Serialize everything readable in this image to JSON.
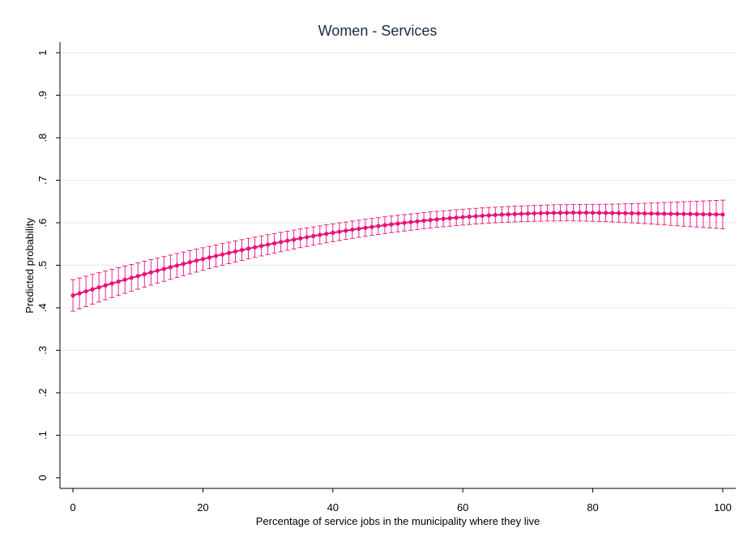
{
  "chart_data": {
    "type": "line",
    "title": "Women - Services",
    "xlabel": "Percentage of service jobs in the municipality where they live",
    "ylabel": "Predicted probability",
    "xlim": [
      -2,
      102
    ],
    "ylim": [
      -0.025,
      1.025
    ],
    "xticks": [
      0,
      20,
      40,
      60,
      80,
      100
    ],
    "xtick_labels": [
      "0",
      "20",
      "40",
      "60",
      "80",
      "100"
    ],
    "yticks": [
      0,
      0.1,
      0.2,
      0.3,
      0.4,
      0.5,
      0.6,
      0.7,
      0.8,
      0.9,
      1
    ],
    "ytick_labels": [
      "0",
      ".1",
      ".2",
      ".3",
      ".4",
      ".5",
      ".6",
      ".7",
      ".8",
      ".9",
      "1"
    ],
    "grid": "horizontal",
    "colors": {
      "series": "#e8117a",
      "ci": "#e8117a",
      "grid": "#e6ecef",
      "axis": "#000000",
      "title": "#1a2a44"
    },
    "series": [
      {
        "x": [
          0,
          1,
          2,
          3,
          4,
          5,
          6,
          7,
          8,
          9,
          10,
          11,
          12,
          13,
          14,
          15,
          16,
          17,
          18,
          19,
          20,
          21,
          22,
          23,
          24,
          25,
          26,
          27,
          28,
          29,
          30,
          31,
          32,
          33,
          34,
          35,
          36,
          37,
          38,
          39,
          40,
          41,
          42,
          43,
          44,
          45,
          46,
          47,
          48,
          49,
          50,
          51,
          52,
          53,
          54,
          55,
          56,
          57,
          58,
          59,
          60,
          61,
          62,
          63,
          64,
          65,
          66,
          67,
          68,
          69,
          70,
          71,
          72,
          73,
          74,
          75,
          76,
          77,
          78,
          79,
          80,
          81,
          82,
          83,
          84,
          85,
          86,
          87,
          88,
          89,
          90,
          91,
          92,
          93,
          94,
          95,
          96,
          97,
          98,
          99,
          100
        ],
        "y": [
          0.429,
          0.4338,
          0.4386,
          0.4433,
          0.448,
          0.4526,
          0.4571,
          0.4616,
          0.466,
          0.4704,
          0.4747,
          0.479,
          0.4832,
          0.4873,
          0.4914,
          0.4954,
          0.4994,
          0.5033,
          0.5071,
          0.5109,
          0.5146,
          0.5183,
          0.5219,
          0.5255,
          0.529,
          0.5324,
          0.5358,
          0.5391,
          0.5423,
          0.5455,
          0.5486,
          0.5517,
          0.5547,
          0.5577,
          0.5605,
          0.5634,
          0.5661,
          0.5688,
          0.5714,
          0.574,
          0.5765,
          0.579,
          0.5813,
          0.5837,
          0.5859,
          0.5881,
          0.5902,
          0.5923,
          0.5943,
          0.5962,
          0.5981,
          0.5999,
          0.6016,
          0.6033,
          0.6049,
          0.6065,
          0.6079,
          0.6093,
          0.6107,
          0.612,
          0.6132,
          0.6143,
          0.6154,
          0.6164,
          0.6174,
          0.6182,
          0.6191,
          0.6198,
          0.6205,
          0.6211,
          0.6216,
          0.6221,
          0.6225,
          0.6229,
          0.6232,
          0.6234,
          0.6235,
          0.6236,
          0.6236,
          0.6236,
          0.6235,
          0.6233,
          0.6231,
          0.6229,
          0.6227,
          0.6225,
          0.6223,
          0.6221,
          0.6219,
          0.6217,
          0.6215,
          0.6213,
          0.6211,
          0.6209,
          0.6207,
          0.6205,
          0.6203,
          0.6201,
          0.6199,
          0.6197,
          0.6195
        ],
        "ci_lower": [
          0.392,
          0.3975,
          0.403,
          0.4083,
          0.4136,
          0.4188,
          0.4239,
          0.429,
          0.434,
          0.4389,
          0.4437,
          0.4485,
          0.4532,
          0.4578,
          0.4623,
          0.4668,
          0.4712,
          0.4755,
          0.4798,
          0.4839,
          0.488,
          0.4921,
          0.4961,
          0.5,
          0.5038,
          0.5076,
          0.5113,
          0.5149,
          0.5184,
          0.5219,
          0.5253,
          0.5287,
          0.5319,
          0.5352,
          0.5383,
          0.5414,
          0.5443,
          0.5473,
          0.5501,
          0.5529,
          0.5556,
          0.5582,
          0.5608,
          0.5633,
          0.5657,
          0.568,
          0.5703,
          0.5725,
          0.5746,
          0.5767,
          0.5787,
          0.5806,
          0.5824,
          0.5842,
          0.5859,
          0.5875,
          0.5891,
          0.5906,
          0.592,
          0.5933,
          0.5946,
          0.5958,
          0.5969,
          0.5979,
          0.5989,
          0.5998,
          0.6006,
          0.6013,
          0.602,
          0.6026,
          0.6031,
          0.6035,
          0.6038,
          0.6041,
          0.6042,
          0.6043,
          0.6043,
          0.6043,
          0.6041,
          0.6039,
          0.6036,
          0.6031,
          0.6026,
          0.602,
          0.6013,
          0.6005,
          0.5997,
          0.5988,
          0.5979,
          0.5969,
          0.5959,
          0.5949,
          0.5939,
          0.5929,
          0.5919,
          0.5909,
          0.5899,
          0.5889,
          0.5879,
          0.5869,
          0.5859
        ],
        "ci_upper": [
          0.466,
          0.4701,
          0.4742,
          0.4783,
          0.4824,
          0.4864,
          0.4903,
          0.4942,
          0.498,
          0.5019,
          0.5057,
          0.5095,
          0.5132,
          0.5168,
          0.5205,
          0.524,
          0.5276,
          0.5311,
          0.5344,
          0.5379,
          0.5412,
          0.5445,
          0.5477,
          0.551,
          0.5542,
          0.5572,
          0.5603,
          0.5633,
          0.5662,
          0.5691,
          0.5719,
          0.5747,
          0.5775,
          0.5802,
          0.5827,
          0.5854,
          0.5879,
          0.5903,
          0.5927,
          0.5951,
          0.5974,
          0.5998,
          0.6018,
          0.6041,
          0.6061,
          0.6082,
          0.6101,
          0.6121,
          0.614,
          0.6157,
          0.6175,
          0.6192,
          0.6208,
          0.6224,
          0.6239,
          0.6255,
          0.6267,
          0.628,
          0.6294,
          0.6307,
          0.6318,
          0.6328,
          0.6339,
          0.6349,
          0.6359,
          0.6366,
          0.6376,
          0.6383,
          0.639,
          0.6396,
          0.6401,
          0.6407,
          0.6412,
          0.6417,
          0.6422,
          0.6425,
          0.6427,
          0.6429,
          0.6431,
          0.6433,
          0.6434,
          0.6435,
          0.6436,
          0.6438,
          0.6441,
          0.6445,
          0.6449,
          0.6454,
          0.6459,
          0.6465,
          0.6471,
          0.6477,
          0.6483,
          0.6489,
          0.6495,
          0.6501,
          0.6507,
          0.6513,
          0.6519,
          0.6525,
          0.6531
        ]
      }
    ]
  }
}
